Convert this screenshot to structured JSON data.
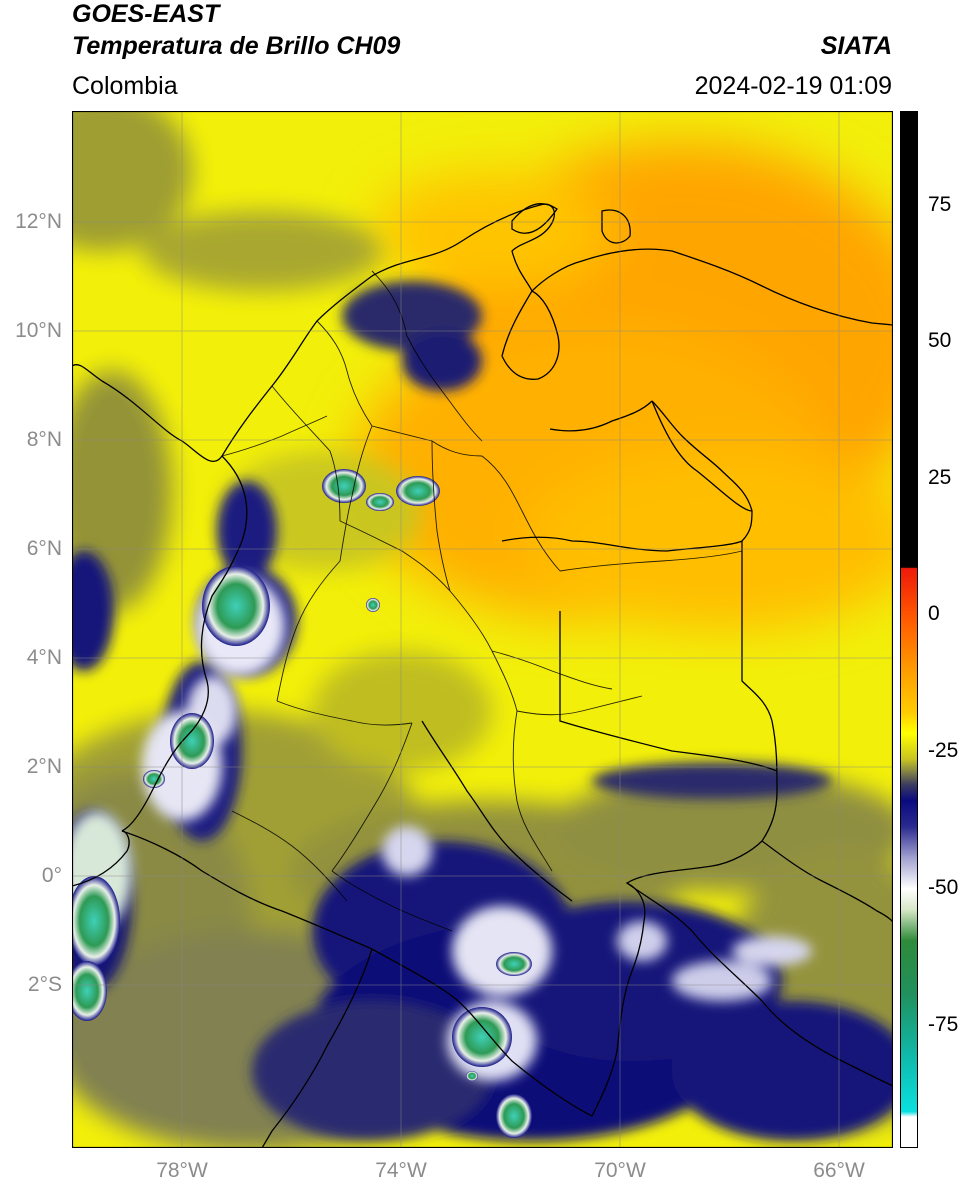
{
  "header": {
    "title_line1": "GOES-EAST",
    "title_line2": "Temperatura de Brillo CH09",
    "organization": "SIATA",
    "region": "Colombia",
    "datetime": "2024-02-19 01:09"
  },
  "map": {
    "lat_ticks": [
      "12°N",
      "10°N",
      "8°N",
      "6°N",
      "4°N",
      "2°N",
      "0°",
      "2°S"
    ],
    "lon_ticks": [
      "78°W",
      "74°W",
      "70°W",
      "66°W"
    ]
  },
  "colorbar": {
    "ticks": [
      "75",
      "50",
      "25",
      "0",
      "-25",
      "-50",
      "-75"
    ],
    "colors": {
      "black": "#000000",
      "red": "#ee1a0a",
      "orange": "#ff9d00",
      "yellow": "#ffff00",
      "olive": "#9c9c2a",
      "navy": "#0a0a80",
      "white": "#ffffff",
      "green": "#2e8b3a",
      "cyan": "#0ad8d8"
    }
  }
}
